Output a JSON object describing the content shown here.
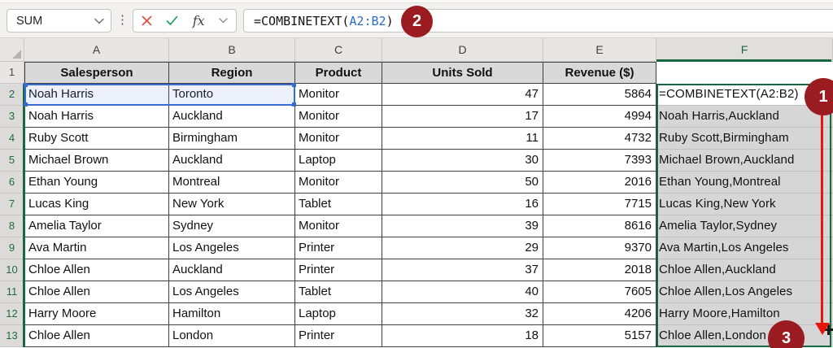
{
  "formula_bar": {
    "name_box_value": "SUM",
    "fx_label": "fx",
    "formula_prefix": "=COMBINETEXT(",
    "formula_range": "A2:B2",
    "formula_suffix": ")"
  },
  "annotations": {
    "step_badges": [
      "1",
      "2",
      "3"
    ],
    "badge_color": "#9a1b20",
    "arrow_color": "#e8150f"
  },
  "colors": {
    "selection_green": "#17693f",
    "reference_blue": "#3a6ad0",
    "cancel_red": "#dd4c3c",
    "confirm_green": "#239a63"
  },
  "sheet": {
    "column_letters": [
      "A",
      "B",
      "C",
      "D",
      "E",
      "F"
    ],
    "row_numbers": [
      "1",
      "2",
      "3",
      "4",
      "5",
      "6",
      "7",
      "8",
      "9",
      "10",
      "11",
      "12",
      "13"
    ],
    "header_row": {
      "salesperson": "Salesperson",
      "region": "Region",
      "product": "Product",
      "units": "Units Sold",
      "revenue": "Revenue ($)",
      "combined": ""
    },
    "rows": [
      {
        "salesperson": "Noah Harris",
        "region": "Toronto",
        "product": "Monitor",
        "units": "47",
        "revenue": "5864",
        "combined": "=COMBINETEXT(A2:B2)"
      },
      {
        "salesperson": "Noah Harris",
        "region": "Auckland",
        "product": "Monitor",
        "units": "17",
        "revenue": "4994",
        "combined": "Noah Harris,Auckland"
      },
      {
        "salesperson": "Ruby Scott",
        "region": "Birmingham",
        "product": "Monitor",
        "units": "11",
        "revenue": "4732",
        "combined": "Ruby Scott,Birmingham"
      },
      {
        "salesperson": "Michael Brown",
        "region": "Auckland",
        "product": "Laptop",
        "units": "30",
        "revenue": "7393",
        "combined": "Michael Brown,Auckland"
      },
      {
        "salesperson": "Ethan Young",
        "region": "Montreal",
        "product": "Monitor",
        "units": "50",
        "revenue": "2016",
        "combined": "Ethan Young,Montreal"
      },
      {
        "salesperson": "Lucas King",
        "region": "New York",
        "product": "Tablet",
        "units": "16",
        "revenue": "7715",
        "combined": "Lucas King,New York"
      },
      {
        "salesperson": "Amelia Taylor",
        "region": "Sydney",
        "product": "Monitor",
        "units": "39",
        "revenue": "8616",
        "combined": "Amelia Taylor,Sydney"
      },
      {
        "salesperson": "Ava Martin",
        "region": "Los Angeles",
        "product": "Printer",
        "units": "29",
        "revenue": "9370",
        "combined": "Ava Martin,Los Angeles"
      },
      {
        "salesperson": "Chloe Allen",
        "region": "Auckland",
        "product": "Printer",
        "units": "37",
        "revenue": "2018",
        "combined": "Chloe Allen,Auckland"
      },
      {
        "salesperson": "Chloe Allen",
        "region": "Los Angeles",
        "product": "Tablet",
        "units": "40",
        "revenue": "7605",
        "combined": "Chloe Allen,Los Angeles"
      },
      {
        "salesperson": "Harry Moore",
        "region": "Hamilton",
        "product": "Laptop",
        "units": "32",
        "revenue": "4206",
        "combined": "Harry Moore,Hamilton"
      },
      {
        "salesperson": "Chloe Allen",
        "region": "London",
        "product": "Printer",
        "units": "18",
        "revenue": "5157",
        "combined": "Chloe Allen,London"
      }
    ]
  }
}
